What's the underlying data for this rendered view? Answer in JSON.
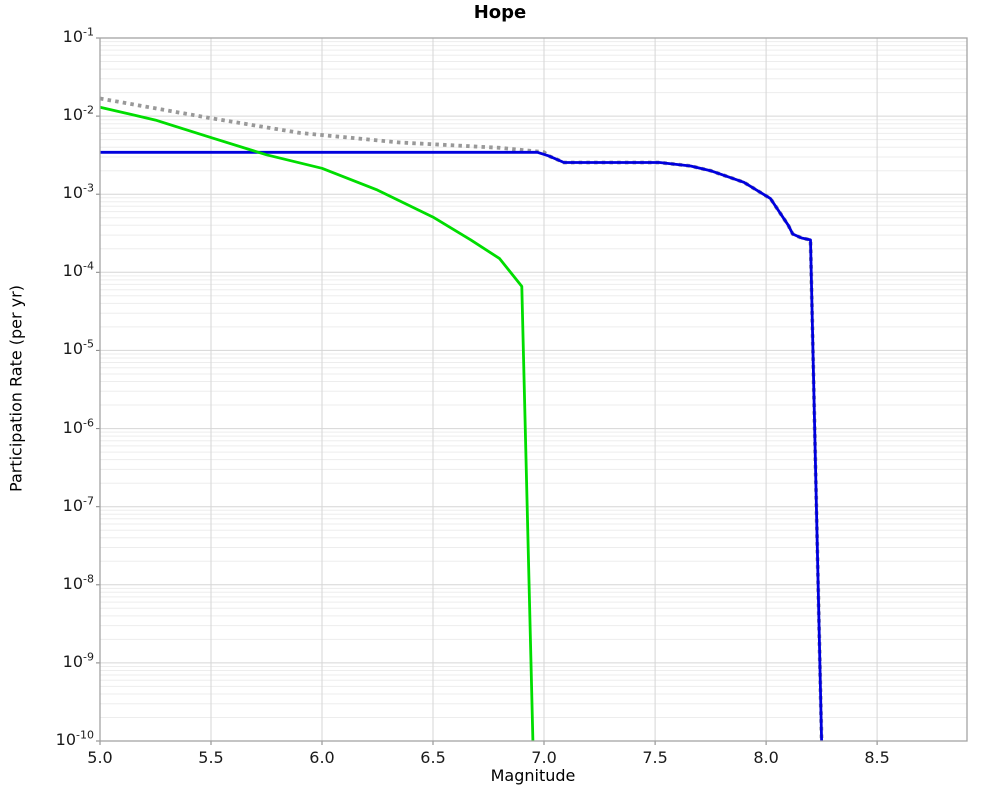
{
  "chart_data": {
    "type": "line",
    "title": "Hope",
    "xlabel": "Magnitude",
    "ylabel": "Participation Rate (per yr)",
    "xlim": [
      5.0,
      8.905
    ],
    "yscale": "log",
    "ylim_exponents": [
      -10,
      -1
    ],
    "grid": {
      "on": true,
      "major_color": "#d6d6d6",
      "minor_color": "#ededed"
    },
    "frame_color": "#a3a3a3",
    "tick_color": "#808080",
    "legend": "none",
    "xticks": [
      {
        "value": 5.0,
        "label": "5.0"
      },
      {
        "value": 5.5,
        "label": "5.5"
      },
      {
        "value": 6.0,
        "label": "6.0"
      },
      {
        "value": 6.5,
        "label": "6.5"
      },
      {
        "value": 7.0,
        "label": "7.0"
      },
      {
        "value": 7.5,
        "label": "7.5"
      },
      {
        "value": 8.0,
        "label": "8.0"
      },
      {
        "value": 8.5,
        "label": "8.5"
      }
    ],
    "ytick_labels": [
      "10^-1",
      "10^-2",
      "10^-3",
      "10^-4",
      "10^-5",
      "10^-6",
      "10^-7",
      "10^-8",
      "10^-9",
      "10^-10"
    ],
    "ytick_exponents": [
      -1,
      -2,
      -3,
      -4,
      -5,
      -6,
      -7,
      -8,
      -9,
      -10
    ],
    "series": [
      {
        "name": "gray-dotted-curve",
        "color": "#999999",
        "style": "dotted",
        "width": 3.8,
        "points": [
          [
            5.0,
            0.0168
          ],
          [
            5.5,
            0.0094
          ],
          [
            5.9,
            0.0061
          ],
          [
            6.35,
            0.0046
          ],
          [
            6.8,
            0.00393
          ],
          [
            7.0,
            0.00345
          ],
          [
            7.02,
            0.0031
          ],
          [
            7.09,
            0.00255
          ],
          [
            7.52,
            0.00255
          ],
          [
            7.66,
            0.0023
          ],
          [
            7.75,
            0.002
          ],
          [
            7.9,
            0.00142
          ],
          [
            8.02,
            0.00088
          ],
          [
            8.1,
            0.0004
          ],
          [
            8.12,
            0.00031
          ],
          [
            8.16,
            0.000275
          ],
          [
            8.2,
            0.00026
          ],
          [
            8.25,
            1e-10
          ]
        ]
      },
      {
        "name": "blue-curve",
        "color": "#0000dd",
        "style": "solid",
        "width": 2.8,
        "points": [
          [
            5.0,
            0.00344
          ],
          [
            6.97,
            0.00344
          ],
          [
            7.02,
            0.0031
          ],
          [
            7.09,
            0.00255
          ],
          [
            7.52,
            0.00255
          ],
          [
            7.66,
            0.0023
          ],
          [
            7.75,
            0.002
          ],
          [
            7.9,
            0.00142
          ],
          [
            8.02,
            0.00088
          ],
          [
            8.1,
            0.0004
          ],
          [
            8.12,
            0.00031
          ],
          [
            8.16,
            0.000275
          ],
          [
            8.2,
            0.00026
          ],
          [
            8.25,
            1e-10
          ]
        ]
      },
      {
        "name": "green-curve",
        "color": "#00dd00",
        "style": "solid",
        "width": 2.8,
        "points": [
          [
            5.0,
            0.013
          ],
          [
            5.25,
            0.0089
          ],
          [
            5.5,
            0.0053
          ],
          [
            5.75,
            0.0032
          ],
          [
            6.0,
            0.00215
          ],
          [
            6.25,
            0.00113
          ],
          [
            6.5,
            0.00051
          ],
          [
            6.67,
            0.00026
          ],
          [
            6.8,
            0.00015
          ],
          [
            6.9,
            6.6e-05
          ],
          [
            6.95,
            1e-10
          ]
        ]
      }
    ]
  }
}
